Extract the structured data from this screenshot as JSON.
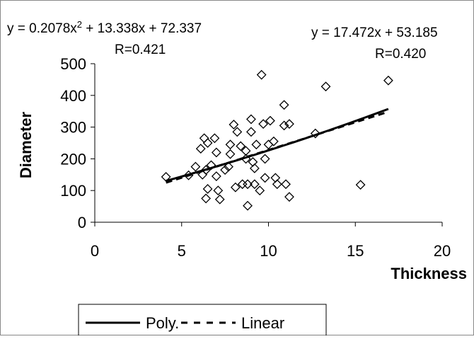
{
  "chart_data": {
    "type": "scatter",
    "title": "",
    "xlabel": "Thickness",
    "ylabel": "Diameter",
    "xlim": [
      0,
      20
    ],
    "ylim": [
      0,
      500
    ],
    "x_ticks": [
      "0",
      "5",
      "10",
      "15",
      "20"
    ],
    "y_ticks": [
      "0",
      "100",
      "200",
      "300",
      "400",
      "500"
    ],
    "grid": false,
    "legend": {
      "placement": "bottom-left",
      "entries": [
        {
          "label": "Poly.",
          "style": "solid"
        },
        {
          "label": "Linear",
          "style": "dashed"
        }
      ]
    },
    "series": [
      {
        "marker": "diamond",
        "points": [
          [
            4.1,
            143
          ],
          [
            5.4,
            148
          ],
          [
            5.8,
            175
          ],
          [
            6.1,
            232
          ],
          [
            6.3,
            265
          ],
          [
            6.5,
            250
          ],
          [
            6.4,
            165
          ],
          [
            6.2,
            150
          ],
          [
            6.5,
            105
          ],
          [
            6.4,
            75
          ],
          [
            6.7,
            180
          ],
          [
            6.9,
            265
          ],
          [
            7.0,
            220
          ],
          [
            7.0,
            145
          ],
          [
            7.1,
            100
          ],
          [
            7.2,
            72
          ],
          [
            7.5,
            165
          ],
          [
            7.8,
            245
          ],
          [
            7.8,
            215
          ],
          [
            7.7,
            175
          ],
          [
            8.0,
            308
          ],
          [
            8.2,
            285
          ],
          [
            8.1,
            110
          ],
          [
            8.4,
            240
          ],
          [
            8.5,
            120
          ],
          [
            8.7,
            225
          ],
          [
            8.7,
            200
          ],
          [
            8.8,
            52
          ],
          [
            8.8,
            120
          ],
          [
            9.0,
            325
          ],
          [
            9.0,
            285
          ],
          [
            9.1,
            190
          ],
          [
            9.3,
            245
          ],
          [
            9.2,
            170
          ],
          [
            9.2,
            120
          ],
          [
            9.5,
            100
          ],
          [
            9.8,
            200
          ],
          [
            9.8,
            140
          ],
          [
            9.7,
            310
          ],
          [
            9.6,
            465
          ],
          [
            10.0,
            245
          ],
          [
            10.1,
            320
          ],
          [
            10.3,
            255
          ],
          [
            10.4,
            140
          ],
          [
            10.5,
            120
          ],
          [
            10.9,
            305
          ],
          [
            10.9,
            370
          ],
          [
            11.0,
            120
          ],
          [
            11.2,
            310
          ],
          [
            11.2,
            80
          ],
          [
            12.7,
            280
          ],
          [
            13.3,
            428
          ],
          [
            15.3,
            118
          ],
          [
            16.9,
            447
          ]
        ]
      }
    ],
    "trendlines": [
      {
        "name": "Poly.",
        "kind": "polynomial",
        "style": "solid",
        "coefficients": [
          72.337,
          13.338,
          0.2078
        ],
        "x_range": [
          4.1,
          16.9
        ],
        "equation": "y = 0.2078x² + 13.338x + 72.337",
        "r_label": "R=0.421"
      },
      {
        "name": "Linear",
        "kind": "linear",
        "style": "dashed",
        "coefficients": [
          53.185,
          17.472
        ],
        "x_range": [
          4.1,
          16.9
        ],
        "equation": "y = 17.472x + 53.185",
        "r_label": "R=0.420"
      }
    ]
  }
}
